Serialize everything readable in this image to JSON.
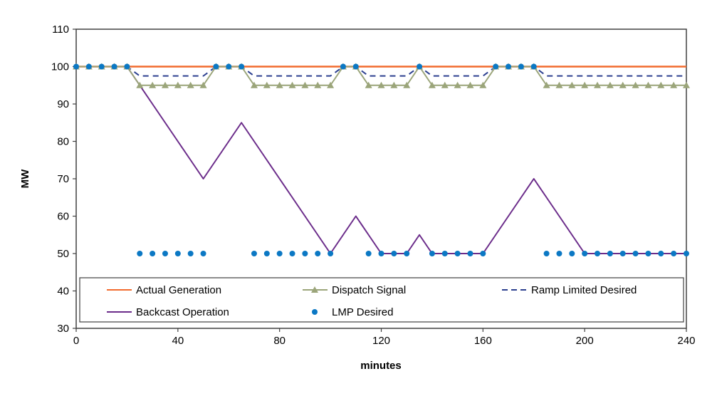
{
  "chart_data": {
    "type": "line",
    "title": "",
    "xlabel": "minutes",
    "ylabel": "MW",
    "xlim": [
      0,
      240
    ],
    "ylim": [
      30,
      110
    ],
    "xticks": [
      0,
      40,
      80,
      120,
      160,
      200,
      240
    ],
    "yticks": [
      30,
      40,
      50,
      60,
      70,
      80,
      90,
      100,
      110
    ],
    "grid": false,
    "legend_placement": "bottom-inside",
    "x": [
      0,
      5,
      10,
      15,
      20,
      25,
      30,
      35,
      40,
      45,
      50,
      55,
      60,
      65,
      70,
      75,
      80,
      85,
      90,
      95,
      100,
      105,
      110,
      115,
      120,
      125,
      130,
      135,
      140,
      145,
      150,
      155,
      160,
      165,
      170,
      175,
      180,
      185,
      190,
      195,
      200,
      205,
      210,
      215,
      220,
      225,
      230,
      235,
      240
    ],
    "series": [
      {
        "name": "Actual Generation",
        "color": "#F26B2E",
        "style": "solid",
        "marker": "none",
        "values": [
          100,
          100,
          100,
          100,
          100,
          100,
          100,
          100,
          100,
          100,
          100,
          100,
          100,
          100,
          100,
          100,
          100,
          100,
          100,
          100,
          100,
          100,
          100,
          100,
          100,
          100,
          100,
          100,
          100,
          100,
          100,
          100,
          100,
          100,
          100,
          100,
          100,
          100,
          100,
          100,
          100,
          100,
          100,
          100,
          100,
          100,
          100,
          100,
          100
        ]
      },
      {
        "name": "Dispatch Signal",
        "color": "#9BA57A",
        "style": "solid",
        "marker": "triangle",
        "values": [
          100,
          100,
          100,
          100,
          100,
          95,
          95,
          95,
          95,
          95,
          95,
          100,
          100,
          100,
          95,
          95,
          95,
          95,
          95,
          95,
          95,
          100,
          100,
          95,
          95,
          95,
          95,
          100,
          95,
          95,
          95,
          95,
          95,
          100,
          100,
          100,
          100,
          95,
          95,
          95,
          95,
          95,
          95,
          95,
          95,
          95,
          95,
          95,
          95
        ]
      },
      {
        "name": "Ramp Limited Desired",
        "color": "#2B3F8F",
        "style": "dashed",
        "marker": "none",
        "values": [
          100,
          100,
          100,
          100,
          100,
          97.5,
          97.5,
          97.5,
          97.5,
          97.5,
          97.5,
          100,
          100,
          100,
          97.5,
          97.5,
          97.5,
          97.5,
          97.5,
          97.5,
          97.5,
          100,
          100,
          97.5,
          97.5,
          97.5,
          97.5,
          100,
          97.5,
          97.5,
          97.5,
          97.5,
          97.5,
          100,
          100,
          100,
          100,
          97.5,
          97.5,
          97.5,
          97.5,
          97.5,
          97.5,
          97.5,
          97.5,
          97.5,
          97.5,
          97.5,
          97.5
        ]
      },
      {
        "name": "Backcast Operation",
        "color": "#6B2C8A",
        "style": "solid",
        "marker": "none",
        "values": [
          100,
          100,
          100,
          100,
          100,
          95,
          90,
          85,
          80,
          75,
          70,
          75,
          80,
          85,
          80,
          75,
          70,
          65,
          60,
          55,
          50,
          55,
          60,
          55,
          50,
          50,
          50,
          55,
          50,
          50,
          50,
          50,
          50,
          55,
          60,
          65,
          70,
          65,
          60,
          55,
          50,
          50,
          50,
          50,
          50,
          50,
          50,
          50,
          50
        ]
      },
      {
        "name": "LMP Desired",
        "color": "#0B78C4",
        "style": "none",
        "marker": "circle",
        "values": [
          100,
          100,
          100,
          100,
          100,
          50,
          50,
          50,
          50,
          50,
          50,
          100,
          100,
          100,
          50,
          50,
          50,
          50,
          50,
          50,
          50,
          100,
          100,
          50,
          50,
          50,
          50,
          100,
          50,
          50,
          50,
          50,
          50,
          100,
          100,
          100,
          100,
          50,
          50,
          50,
          50,
          50,
          50,
          50,
          50,
          50,
          50,
          50,
          50
        ]
      }
    ]
  }
}
